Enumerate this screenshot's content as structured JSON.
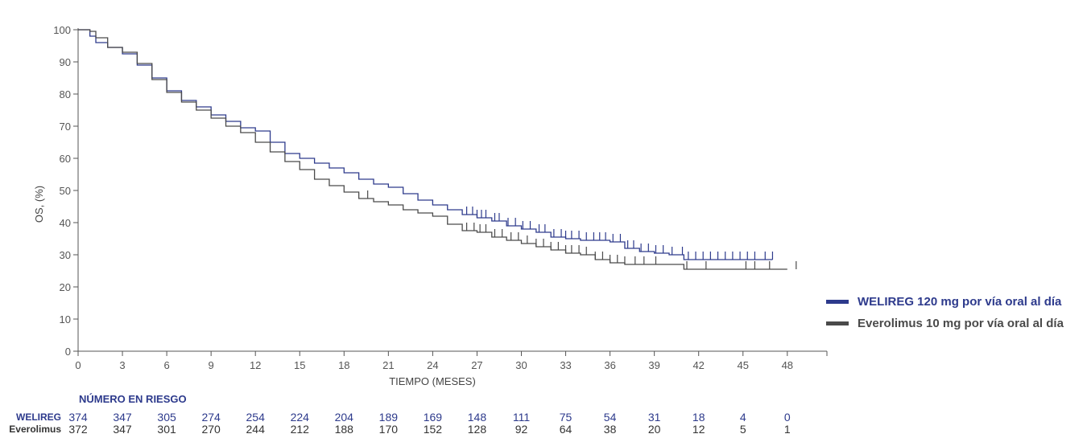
{
  "chart_data": {
    "type": "line",
    "title": "",
    "xlabel": "TIEMPO (MESES)",
    "ylabel": "OS, (%)",
    "xlim": [
      0,
      48
    ],
    "ylim": [
      0,
      100
    ],
    "xticks": [
      0,
      3,
      6,
      9,
      12,
      15,
      18,
      21,
      24,
      27,
      30,
      33,
      36,
      39,
      42,
      45,
      48
    ],
    "yticks": [
      0,
      10,
      20,
      30,
      40,
      50,
      60,
      70,
      80,
      90,
      100
    ],
    "grid": false,
    "legend_position": "right",
    "series": [
      {
        "name": "WELIREG 120 mg por vía oral al día",
        "color": "#2d3a8c",
        "x": [
          0,
          0.8,
          1.2,
          2,
          3,
          4,
          5,
          6,
          7,
          8,
          9,
          10,
          11,
          12,
          13,
          14,
          15,
          16,
          17,
          18,
          19,
          20,
          21,
          22,
          23,
          24,
          25,
          26,
          27,
          28,
          29,
          30,
          31,
          32,
          33,
          34,
          35,
          36,
          37,
          38,
          39,
          40,
          41,
          42,
          43,
          44,
          45,
          46,
          47
        ],
        "y": [
          100,
          98,
          96,
          94.5,
          92.5,
          89,
          85,
          81,
          78,
          76,
          73.5,
          71.5,
          69.5,
          68.5,
          65,
          61.5,
          60,
          58.5,
          57,
          55.5,
          53.5,
          52,
          51,
          49,
          47,
          45.5,
          44,
          42.5,
          41.5,
          40.5,
          39,
          38,
          37,
          35.5,
          35,
          34.5,
          34.5,
          34,
          32,
          31,
          30.5,
          30,
          28.5,
          28.5,
          28.5,
          28.5,
          28.5,
          28.5,
          28.5
        ],
        "censored_x": [
          26.3,
          26.7,
          27,
          27.3,
          27.6,
          28.2,
          28.5,
          29.1,
          29.6,
          30.1,
          30.6,
          31.2,
          31.6,
          32.2,
          32.7,
          33,
          33.4,
          33.9,
          34.4,
          34.9,
          35.3,
          35.7,
          36.2,
          36.7,
          37.2,
          37.6,
          38.1,
          38.6,
          39.1,
          39.6,
          40.2,
          40.9,
          41.3,
          41.8,
          42.3,
          42.8,
          43.3,
          43.8,
          44.3,
          44.8,
          45.3,
          45.8,
          46.5,
          47
        ]
      },
      {
        "name": "Everolimus 10 mg por vía oral al día",
        "color": "#4a4a4a",
        "x": [
          0,
          0.8,
          1.2,
          2,
          3,
          4,
          5,
          6,
          7,
          8,
          9,
          10,
          11,
          12,
          13,
          14,
          15,
          16,
          17,
          18,
          19,
          20,
          21,
          22,
          23,
          24,
          25,
          26,
          27,
          28,
          29,
          30,
          31,
          32,
          33,
          34,
          35,
          36,
          37,
          38,
          39,
          40,
          41,
          42,
          43,
          44,
          45,
          46,
          47,
          48
        ],
        "y": [
          100,
          99.5,
          97.5,
          94.5,
          93,
          89.5,
          84.5,
          80.5,
          77.5,
          75,
          72.5,
          70,
          68,
          65,
          62,
          59,
          56.5,
          53.5,
          51.5,
          49.5,
          47.5,
          46.5,
          45.5,
          44,
          43,
          42,
          39.5,
          37.5,
          37,
          35.5,
          34.5,
          33.5,
          32.5,
          31.5,
          30.5,
          30,
          28.5,
          27.5,
          27,
          27,
          27,
          27,
          25.5,
          25.5,
          25.5,
          25.5,
          25.5,
          25.5,
          25.5,
          25.5
        ],
        "censored_x": [
          19.6,
          26.3,
          26.8,
          27.2,
          27.6,
          28.2,
          28.7,
          29.3,
          29.8,
          30.4,
          31,
          31.5,
          32,
          32.5,
          33,
          33.4,
          33.9,
          34.4,
          35,
          35.5,
          36,
          36.5,
          37,
          37.7,
          38.3,
          39.1,
          41.2,
          42.5,
          45.2,
          45.8,
          46.8,
          48.6
        ]
      }
    ],
    "risk_table": {
      "title": "NÚMERO EN RIESGO",
      "rows": [
        {
          "name": "WELIREG",
          "color": "#2d3a8c",
          "values": [
            "374",
            "347",
            "305",
            "274",
            "254",
            "224",
            "204",
            "189",
            "169",
            "148",
            "111",
            "75",
            "54",
            "31",
            "18",
            "4",
            "0"
          ]
        },
        {
          "name": "Everolimus",
          "color": "#333333",
          "values": [
            "372",
            "347",
            "301",
            "270",
            "244",
            "212",
            "188",
            "170",
            "152",
            "128",
            "92",
            "64",
            "38",
            "20",
            "12",
            "5",
            "1"
          ]
        }
      ]
    }
  }
}
